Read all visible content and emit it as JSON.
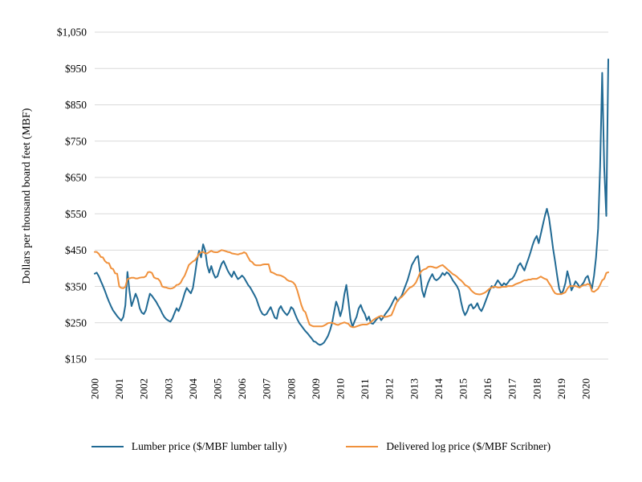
{
  "chart_data": {
    "type": "line",
    "title": "",
    "ylabel": "Dollars per thousand board feet (MBF)",
    "xlabel": "",
    "x_unit": "month",
    "x_start": "2000-01",
    "x_end": "2020-12",
    "grid": "horizontal-only",
    "grid_color": "#d9d9d9",
    "legend_position": "bottom",
    "ylim": [
      150,
      1050
    ],
    "y_ticks": [
      {
        "label": "$150",
        "value": 150
      },
      {
        "label": "$250",
        "value": 250
      },
      {
        "label": "$350",
        "value": 350
      },
      {
        "label": "$450",
        "value": 450
      },
      {
        "label": "$550",
        "value": 550
      },
      {
        "label": "$650",
        "value": 650
      },
      {
        "label": "$750",
        "value": 750
      },
      {
        "label": "$850",
        "value": 850
      },
      {
        "label": "$950",
        "value": 950
      },
      {
        "label": "$1,050",
        "value": 1050
      }
    ],
    "x_tick_years": [
      "2000",
      "2001",
      "2002",
      "2003",
      "2004",
      "2005",
      "2006",
      "2007",
      "2008",
      "2009",
      "2010",
      "2011",
      "2012",
      "2013",
      "2014",
      "2015",
      "2016",
      "2017",
      "2018",
      "2019",
      "2020"
    ],
    "series": [
      {
        "id": "lumber-price",
        "name": "Lumber price ($/MBF lumber tally)",
        "color": "#216a94",
        "values": [
          385,
          388,
          378,
          365,
          352,
          338,
          322,
          308,
          295,
          284,
          276,
          268,
          262,
          256,
          266,
          298,
          390,
          338,
          296,
          312,
          330,
          316,
          290,
          278,
          274,
          284,
          308,
          330,
          324,
          316,
          308,
          298,
          288,
          276,
          266,
          260,
          256,
          253,
          262,
          276,
          290,
          282,
          296,
          312,
          332,
          346,
          338,
          331,
          346,
          382,
          422,
          448,
          430,
          466,
          448,
          408,
          388,
          406,
          386,
          374,
          378,
          396,
          412,
          420,
          407,
          394,
          384,
          376,
          391,
          380,
          370,
          374,
          380,
          374,
          364,
          354,
          347,
          337,
          327,
          316,
          299,
          284,
          274,
          271,
          274,
          284,
          293,
          279,
          264,
          261,
          287,
          296,
          284,
          277,
          271,
          279,
          293,
          288,
          273,
          260,
          249,
          242,
          234,
          227,
          221,
          214,
          207,
          199,
          197,
          192,
          189,
          191,
          195,
          204,
          214,
          229,
          249,
          279,
          308,
          293,
          268,
          288,
          328,
          354,
          308,
          260,
          239,
          254,
          267,
          289,
          299,
          284,
          274,
          257,
          267,
          249,
          247,
          254,
          261,
          267,
          257,
          264,
          274,
          281,
          289,
          299,
          311,
          321,
          309,
          317,
          324,
          339,
          354,
          369,
          389,
          409,
          419,
          429,
          434,
          389,
          339,
          321,
          344,
          361,
          374,
          384,
          371,
          367,
          371,
          377,
          387,
          381,
          389,
          385,
          377,
          367,
          359,
          351,
          339,
          309,
          284,
          271,
          281,
          297,
          301,
          289,
          294,
          304,
          289,
          282,
          294,
          309,
          324,
          339,
          351,
          347,
          357,
          367,
          359,
          351,
          359,
          354,
          361,
          369,
          371,
          379,
          391,
          407,
          414,
          404,
          394,
          411,
          427,
          444,
          464,
          479,
          489,
          469,
          494,
          519,
          544,
          564,
          539,
          499,
          454,
          419,
          379,
          344,
          329,
          339,
          359,
          392,
          369,
          339,
          351,
          364,
          357,
          347,
          354,
          361,
          374,
          379,
          359,
          344,
          379,
          429,
          509,
          679,
          938,
          679,
          544,
          975
        ]
      },
      {
        "id": "delivered-log-price",
        "name": "Delivered log price ($/MBF Scribner)",
        "color": "#f0913c",
        "values": [
          445,
          445,
          440,
          431,
          430,
          420,
          415,
          414,
          400,
          398,
          386,
          385,
          350,
          346,
          345,
          349,
          370,
          372,
          374,
          374,
          372,
          372,
          374,
          375,
          375,
          378,
          389,
          390,
          387,
          375,
          372,
          371,
          364,
          350,
          348,
          347,
          345,
          344,
          345,
          348,
          354,
          355,
          360,
          371,
          380,
          394,
          409,
          414,
          419,
          422,
          430,
          439,
          444,
          445,
          441,
          441,
          445,
          448,
          445,
          444,
          444,
          447,
          450,
          449,
          447,
          445,
          444,
          441,
          440,
          439,
          438,
          440,
          441,
          444,
          441,
          430,
          420,
          417,
          410,
          408,
          408,
          408,
          410,
          411,
          411,
          411,
          390,
          388,
          385,
          382,
          381,
          380,
          377,
          374,
          368,
          365,
          364,
          361,
          354,
          339,
          319,
          299,
          284,
          279,
          261,
          245,
          242,
          240,
          240,
          240,
          240,
          240,
          242,
          245,
          249,
          250,
          250,
          248,
          245,
          244,
          247,
          249,
          251,
          249,
          247,
          240,
          238,
          238,
          240,
          242,
          244,
          245,
          245,
          245,
          248,
          252,
          257,
          261,
          264,
          267,
          269,
          267,
          266,
          267,
          269,
          271,
          284,
          299,
          311,
          317,
          321,
          327,
          334,
          341,
          347,
          349,
          354,
          361,
          374,
          387,
          394,
          397,
          399,
          404,
          405,
          404,
          402,
          401,
          404,
          407,
          409,
          404,
          399,
          394,
          389,
          384,
          381,
          377,
          371,
          367,
          361,
          354,
          351,
          347,
          339,
          334,
          330,
          329,
          328,
          329,
          331,
          334,
          339,
          344,
          347,
          349,
          349,
          347,
          347,
          349,
          349,
          349,
          351,
          351,
          351,
          354,
          357,
          359,
          361,
          364,
          367,
          367,
          369,
          369,
          371,
          371,
          371,
          374,
          377,
          374,
          371,
          369,
          359,
          351,
          339,
          331,
          329,
          329,
          329,
          331,
          334,
          344,
          351,
          351,
          351,
          351,
          349,
          347,
          351,
          354,
          354,
          357,
          354,
          337,
          335,
          339,
          344,
          354,
          367,
          371,
          387,
          389
        ]
      }
    ]
  }
}
